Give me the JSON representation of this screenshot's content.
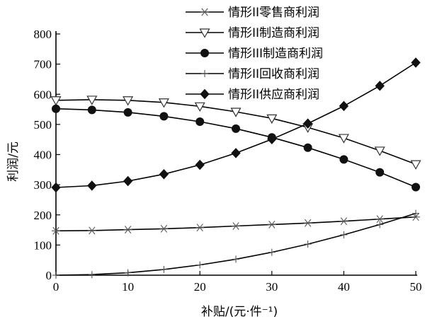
{
  "chart_data": {
    "type": "line",
    "xlabel": "补贴/(元·件⁻¹)",
    "ylabel": "利润/元",
    "xlim": [
      0,
      50
    ],
    "ylim": [
      0,
      800
    ],
    "xticks": [
      0,
      10,
      20,
      30,
      40,
      50
    ],
    "yticks": [
      0,
      100,
      200,
      300,
      400,
      500,
      600,
      700,
      800
    ],
    "grid": false,
    "legend_position": "top-right",
    "x": [
      0,
      5,
      10,
      15,
      20,
      25,
      30,
      35,
      40,
      45,
      50
    ],
    "series": [
      {
        "name": "情形II零售商利润",
        "marker": "asterisk",
        "values": [
          147,
          148,
          151,
          154,
          158,
          163,
          168,
          173,
          179,
          186,
          193
        ]
      },
      {
        "name": "情形II制造商利润",
        "marker": "triangle-down-open",
        "values": [
          580,
          582,
          580,
          573,
          560,
          542,
          520,
          490,
          455,
          413,
          368
        ]
      },
      {
        "name": "情形III制造商利润",
        "marker": "circle-filled",
        "values": [
          552,
          548,
          540,
          527,
          509,
          486,
          457,
          423,
          384,
          341,
          292
        ]
      },
      {
        "name": "情形II回收商利润",
        "marker": "plus",
        "values": [
          0,
          2,
          8,
          19,
          34,
          53,
          76,
          103,
          134,
          168,
          205
        ]
      },
      {
        "name": "情形II供应商利润",
        "marker": "diamond-filled",
        "values": [
          291,
          297,
          312,
          335,
          366,
          405,
          451,
          503,
          561,
          628,
          705
        ]
      }
    ]
  }
}
